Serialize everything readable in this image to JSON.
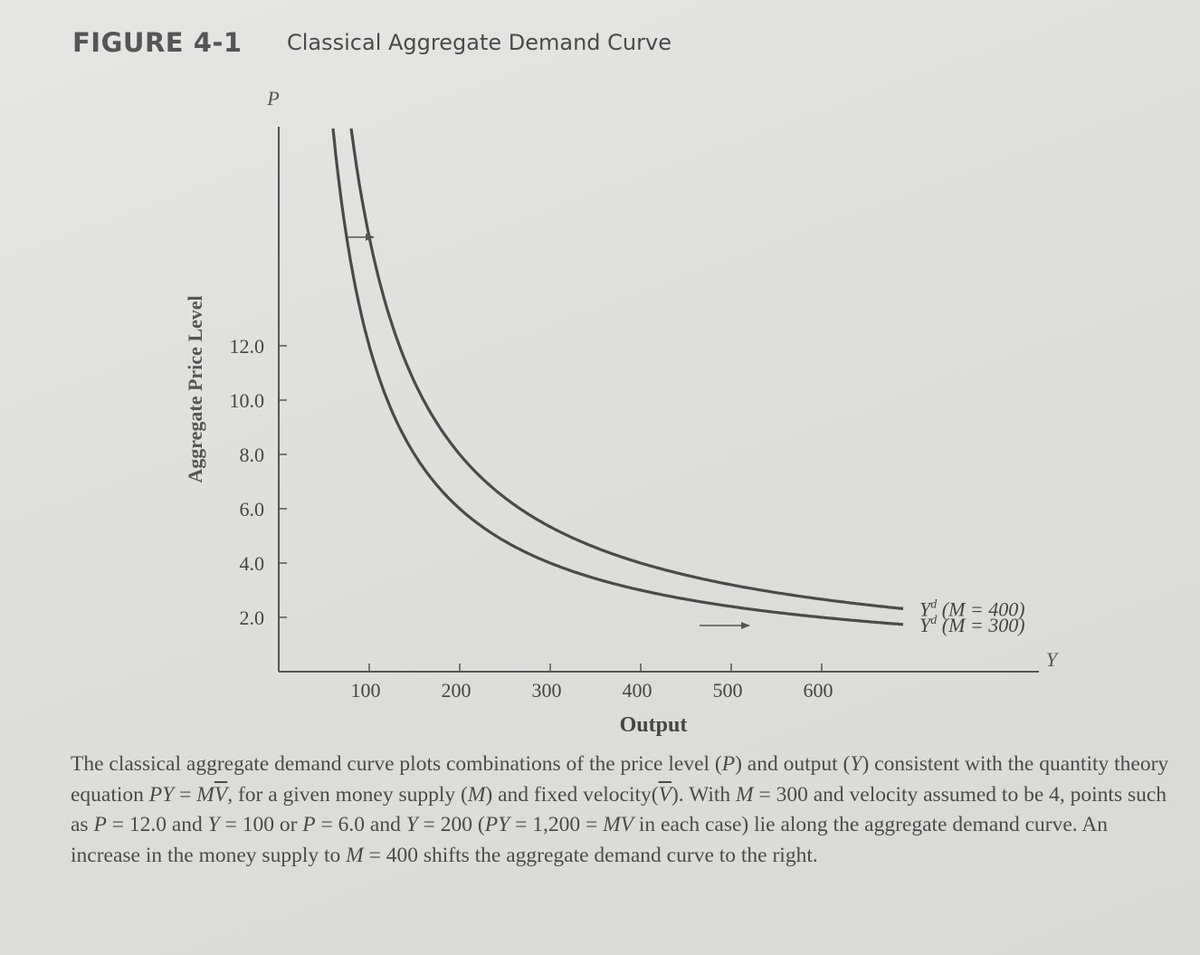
{
  "figure": {
    "number": "FIGURE 4-1",
    "title": "Classical Aggregate Demand Curve"
  },
  "caption": {
    "t1": "The classical aggregate demand curve plots combinations of the price level (",
    "v_p1": "P",
    "t2": ") and output (",
    "v_y1": "Y",
    "t3": ") consistent with the quantity theory equation ",
    "eq1_lhs": "PY",
    "eq1_eq": " = ",
    "eq1_m": "M",
    "eq1_v": "V",
    "t4": ", for a given money supply (",
    "v_m1": "M",
    "t5": ") and fixed velocity(",
    "v_v2": "V",
    "t6": "). With ",
    "v_m2": "M",
    "t7": " = 300 and velocity assumed to be 4, points such as ",
    "v_p2": "P",
    "t8": " = 12.0 and ",
    "v_y2": "Y",
    "t9": " = 100 or ",
    "v_p3": "P",
    "t10": " = 6.0 and ",
    "v_y3": "Y",
    "t11": " = 200 (",
    "v_py": "PY",
    "t12": " = 1,200 = ",
    "v_mv": "MV",
    "t13": " in each case) lie along the aggregate demand curve. An increase in the money supply to ",
    "v_m3": "M",
    "t14": " = 400 shifts the aggregate demand curve to the right."
  },
  "chart_data": {
    "type": "line",
    "xlabel": "Output",
    "ylabel": "Aggregate Price Level",
    "x_axis_symbol": "Y",
    "y_axis_symbol": "P",
    "x_ticks": [
      100,
      200,
      300,
      400,
      500,
      600
    ],
    "x_tick_labels": [
      "100",
      "200",
      "300",
      "400",
      "500",
      "600"
    ],
    "y_ticks": [
      2.0,
      4.0,
      6.0,
      8.0,
      10.0,
      12.0
    ],
    "y_tick_labels": [
      "2.0",
      "4.0",
      "6.0",
      "8.0",
      "10.0",
      "12.0"
    ],
    "xlim": [
      0,
      840
    ],
    "ylim": [
      0,
      20
    ],
    "grid": false,
    "velocity": 4,
    "series": [
      {
        "name": "Yd (M = 300)",
        "label_main": "Y",
        "label_sup": "d",
        "label_rest": " (M = 300)",
        "money_supply": 300,
        "x_range": [
          60,
          690
        ]
      },
      {
        "name": "Yd (M = 400)",
        "label_main": "Y",
        "label_sup": "d",
        "label_rest": " (M = 400)",
        "money_supply": 400,
        "x_range": [
          80,
          690
        ]
      }
    ],
    "shift_arrows": [
      {
        "from": [
          75,
          16.0
        ],
        "to": [
          105,
          16.0
        ]
      },
      {
        "from": [
          465,
          1.7
        ],
        "to": [
          520,
          1.7
        ]
      }
    ],
    "colors": {
      "curve": "#4a4a4a",
      "axis": "#555555",
      "text": "#444444"
    }
  }
}
